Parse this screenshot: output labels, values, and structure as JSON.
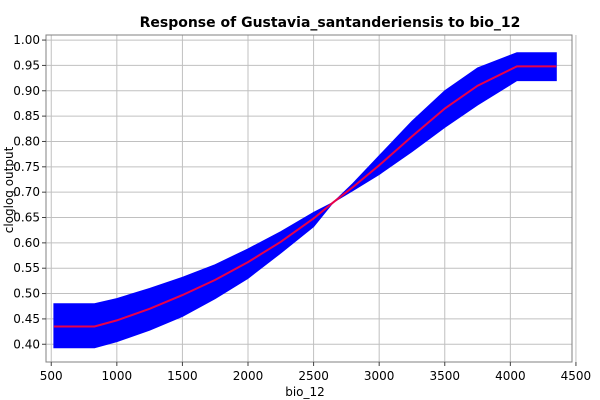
{
  "chart_data": {
    "type": "line",
    "title": "Response of Gustavia_santanderiensis to bio_12",
    "xlabel": "bio_12",
    "ylabel": "cloglog output",
    "xlim": [
      460,
      4470
    ],
    "ylim": [
      0.365,
      1.01
    ],
    "x_ticks": [
      500,
      1000,
      1500,
      2000,
      2500,
      3000,
      3500,
      4000,
      4500
    ],
    "x_tick_labels": [
      "500",
      "1000",
      "1500",
      "2000",
      "2500",
      "3000",
      "3500",
      "4000",
      "4500"
    ],
    "y_ticks": [
      0.4,
      0.45,
      0.5,
      0.55,
      0.6,
      0.65,
      0.7,
      0.75,
      0.8,
      0.85,
      0.9,
      0.95,
      1.0
    ],
    "y_tick_labels": [
      "0.40",
      "0.45",
      "0.50",
      "0.55",
      "0.60",
      "0.65",
      "0.70",
      "0.75",
      "0.80",
      "0.85",
      "0.90",
      "0.95",
      "1.00"
    ],
    "grid": true,
    "series": [
      {
        "role": "mean",
        "color": "#e8004a",
        "x": [
          520,
          830,
          1000,
          1250,
          1500,
          1750,
          2000,
          2250,
          2500,
          2650,
          2800,
          3000,
          3250,
          3500,
          3750,
          4050,
          4350
        ],
        "y": [
          0.435,
          0.435,
          0.447,
          0.47,
          0.497,
          0.527,
          0.562,
          0.602,
          0.648,
          0.68,
          0.71,
          0.753,
          0.81,
          0.865,
          0.91,
          0.948,
          0.948
        ]
      },
      {
        "role": "band-upper",
        "color": "#0000ff",
        "x": [
          520,
          830,
          1000,
          1250,
          1500,
          1750,
          2000,
          2250,
          2500,
          2650,
          2800,
          3000,
          3250,
          3500,
          3750,
          4050,
          4350
        ],
        "y": [
          0.48,
          0.48,
          0.49,
          0.51,
          0.532,
          0.557,
          0.588,
          0.622,
          0.66,
          0.68,
          0.717,
          0.772,
          0.84,
          0.9,
          0.945,
          0.975,
          0.975
        ]
      },
      {
        "role": "band-lower",
        "color": "#0000ff",
        "x": [
          520,
          830,
          1000,
          1250,
          1500,
          1750,
          2000,
          2250,
          2500,
          2650,
          2800,
          3000,
          3250,
          3500,
          3750,
          4050,
          4350
        ],
        "y": [
          0.393,
          0.393,
          0.405,
          0.428,
          0.455,
          0.49,
          0.53,
          0.58,
          0.632,
          0.68,
          0.703,
          0.735,
          0.78,
          0.828,
          0.872,
          0.92,
          0.92
        ]
      }
    ]
  }
}
